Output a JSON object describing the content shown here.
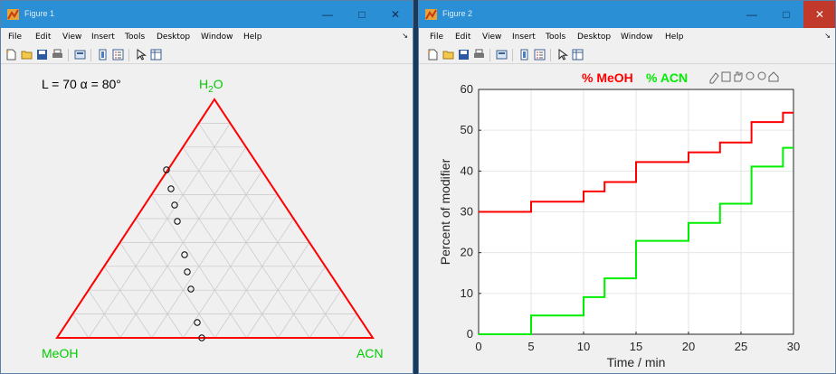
{
  "menu_items": [
    "File",
    "Edit",
    "View",
    "Insert",
    "Tools",
    "Desktop",
    "Window",
    "Help"
  ],
  "figure1": {
    "window_title": "Figure 1",
    "annotation": "L = 70  α = 80°",
    "vertex_top": "H",
    "vertex_top_sub": "2",
    "vertex_top_tail": "O",
    "vertex_left": "MeOH",
    "vertex_right": "ACN",
    "points_count": 10
  },
  "figure2": {
    "window_title": "Figure 2",
    "legend": [
      "% MeOH",
      "% ACN"
    ],
    "ylabel": "Percent of modifier",
    "xlabel": "Time / min",
    "xticks": [
      "0",
      "5",
      "10",
      "15",
      "20",
      "25",
      "30"
    ],
    "yticks": [
      "0",
      "10",
      "20",
      "30",
      "40",
      "50",
      "60"
    ]
  },
  "colors": {
    "meoh": "#ff0000",
    "acn": "#00ee00",
    "titlebar": "#2b8fd6",
    "close_red": "#c1392b"
  },
  "chart_data": {
    "type": "line",
    "step": true,
    "xlabel": "Time / min",
    "ylabel": "Percent of modifier",
    "xlim": [
      0,
      30
    ],
    "ylim": [
      0,
      60
    ],
    "grid": true,
    "legend_position": "top",
    "series": [
      {
        "name": "% MeOH",
        "color": "#ff0000",
        "x": [
          0,
          5,
          5,
          10,
          10,
          12,
          12,
          15,
          15,
          20,
          20,
          23,
          23,
          26,
          26,
          29,
          29,
          30
        ],
        "y": [
          30,
          30,
          32.5,
          32.5,
          35,
          35,
          37.3,
          37.3,
          42.2,
          42.2,
          44.6,
          44.6,
          47,
          47,
          52,
          52,
          54.3,
          54.3
        ]
      },
      {
        "name": "% ACN",
        "color": "#00ee00",
        "x": [
          0,
          5,
          5,
          10,
          10,
          12,
          12,
          15,
          15,
          20,
          20,
          23,
          23,
          26,
          26,
          29,
          29,
          30
        ],
        "y": [
          0,
          0,
          4.6,
          4.6,
          9.1,
          9.1,
          13.7,
          13.7,
          22.9,
          22.9,
          27.3,
          27.3,
          32,
          32,
          41.1,
          41.1,
          45.7,
          45.7
        ]
      }
    ]
  }
}
